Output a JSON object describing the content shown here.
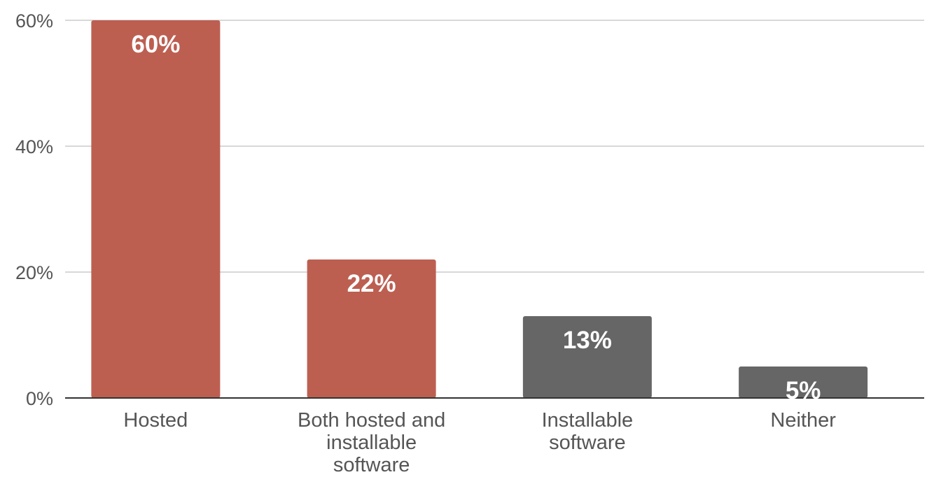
{
  "chart_data": {
    "type": "bar",
    "title": "",
    "xlabel": "",
    "ylabel": "",
    "categories": [
      [
        "Hosted"
      ],
      [
        "Both hosted and",
        "installable",
        "software"
      ],
      [
        "Installable",
        "software"
      ],
      [
        "Neither"
      ]
    ],
    "values": [
      60,
      22,
      13,
      5
    ],
    "data_labels": [
      "60%",
      "22%",
      "13%",
      "5%"
    ],
    "bar_colors": [
      "#bc5f51",
      "#bc5f51",
      "#666666",
      "#666666"
    ],
    "ylim": [
      0,
      60
    ],
    "yticks": [
      0,
      20,
      40,
      60
    ],
    "ytick_labels": [
      "0%",
      "20%",
      "40%",
      "60%"
    ],
    "grid": true,
    "legend": "none"
  }
}
